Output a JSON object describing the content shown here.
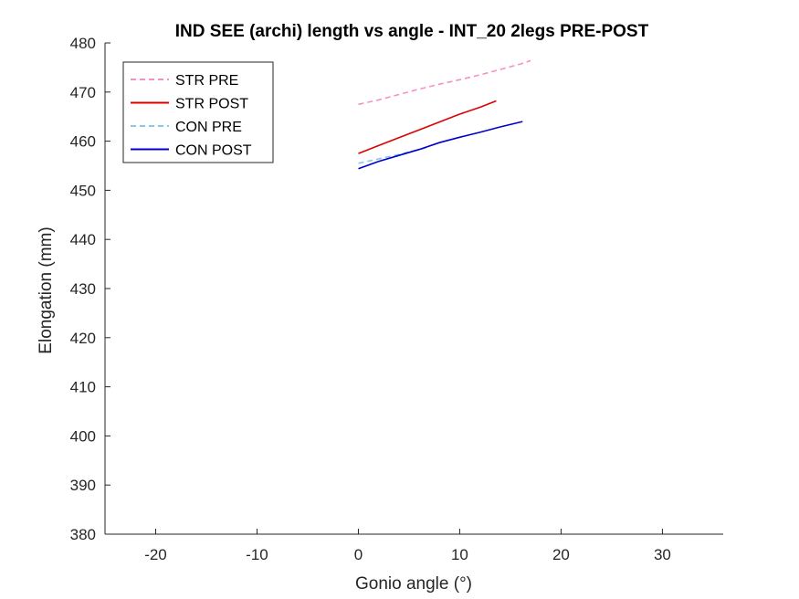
{
  "chart_data": {
    "type": "line",
    "title": "IND SEE (archi) length vs angle - INT_20 2legs PRE-POST",
    "xlabel": "Gonio angle (°)",
    "ylabel": "Elongation (mm)",
    "xlim": [
      -25,
      36
    ],
    "ylim": [
      380,
      480
    ],
    "xticks": [
      -20,
      -10,
      0,
      10,
      20,
      30
    ],
    "yticks": [
      380,
      390,
      400,
      410,
      420,
      430,
      440,
      450,
      460,
      470,
      480
    ],
    "grid": false,
    "legend_position": "top-left",
    "series": [
      {
        "name": "STR PRE",
        "color": "#f590c4",
        "style": "dashed",
        "x": [
          0,
          2,
          4,
          6,
          8,
          10,
          12,
          14,
          16,
          17
        ],
        "y": [
          467.5,
          468.4,
          469.5,
          470.6,
          471.6,
          472.5,
          473.5,
          474.6,
          475.7,
          476.4
        ]
      },
      {
        "name": "STR POST",
        "color": "#dd0000",
        "style": "solid",
        "x": [
          0,
          2,
          4,
          6,
          8,
          10,
          12,
          13.6
        ],
        "y": [
          457.5,
          459.1,
          460.7,
          462.3,
          463.9,
          465.5,
          466.9,
          468.2
        ]
      },
      {
        "name": "CON PRE",
        "color": "#88c8ec",
        "style": "dashed",
        "x": [
          0,
          2,
          4,
          6,
          7
        ],
        "y": [
          455.5,
          456.4,
          457.3,
          458.3,
          458.8
        ]
      },
      {
        "name": "CON POST",
        "color": "#0000cc",
        "style": "solid",
        "x": [
          0,
          2,
          4,
          6,
          8,
          10,
          12,
          14,
          16.2
        ],
        "y": [
          454.4,
          455.9,
          457.1,
          458.3,
          459.7,
          460.8,
          461.8,
          462.9,
          464.0
        ]
      }
    ]
  }
}
